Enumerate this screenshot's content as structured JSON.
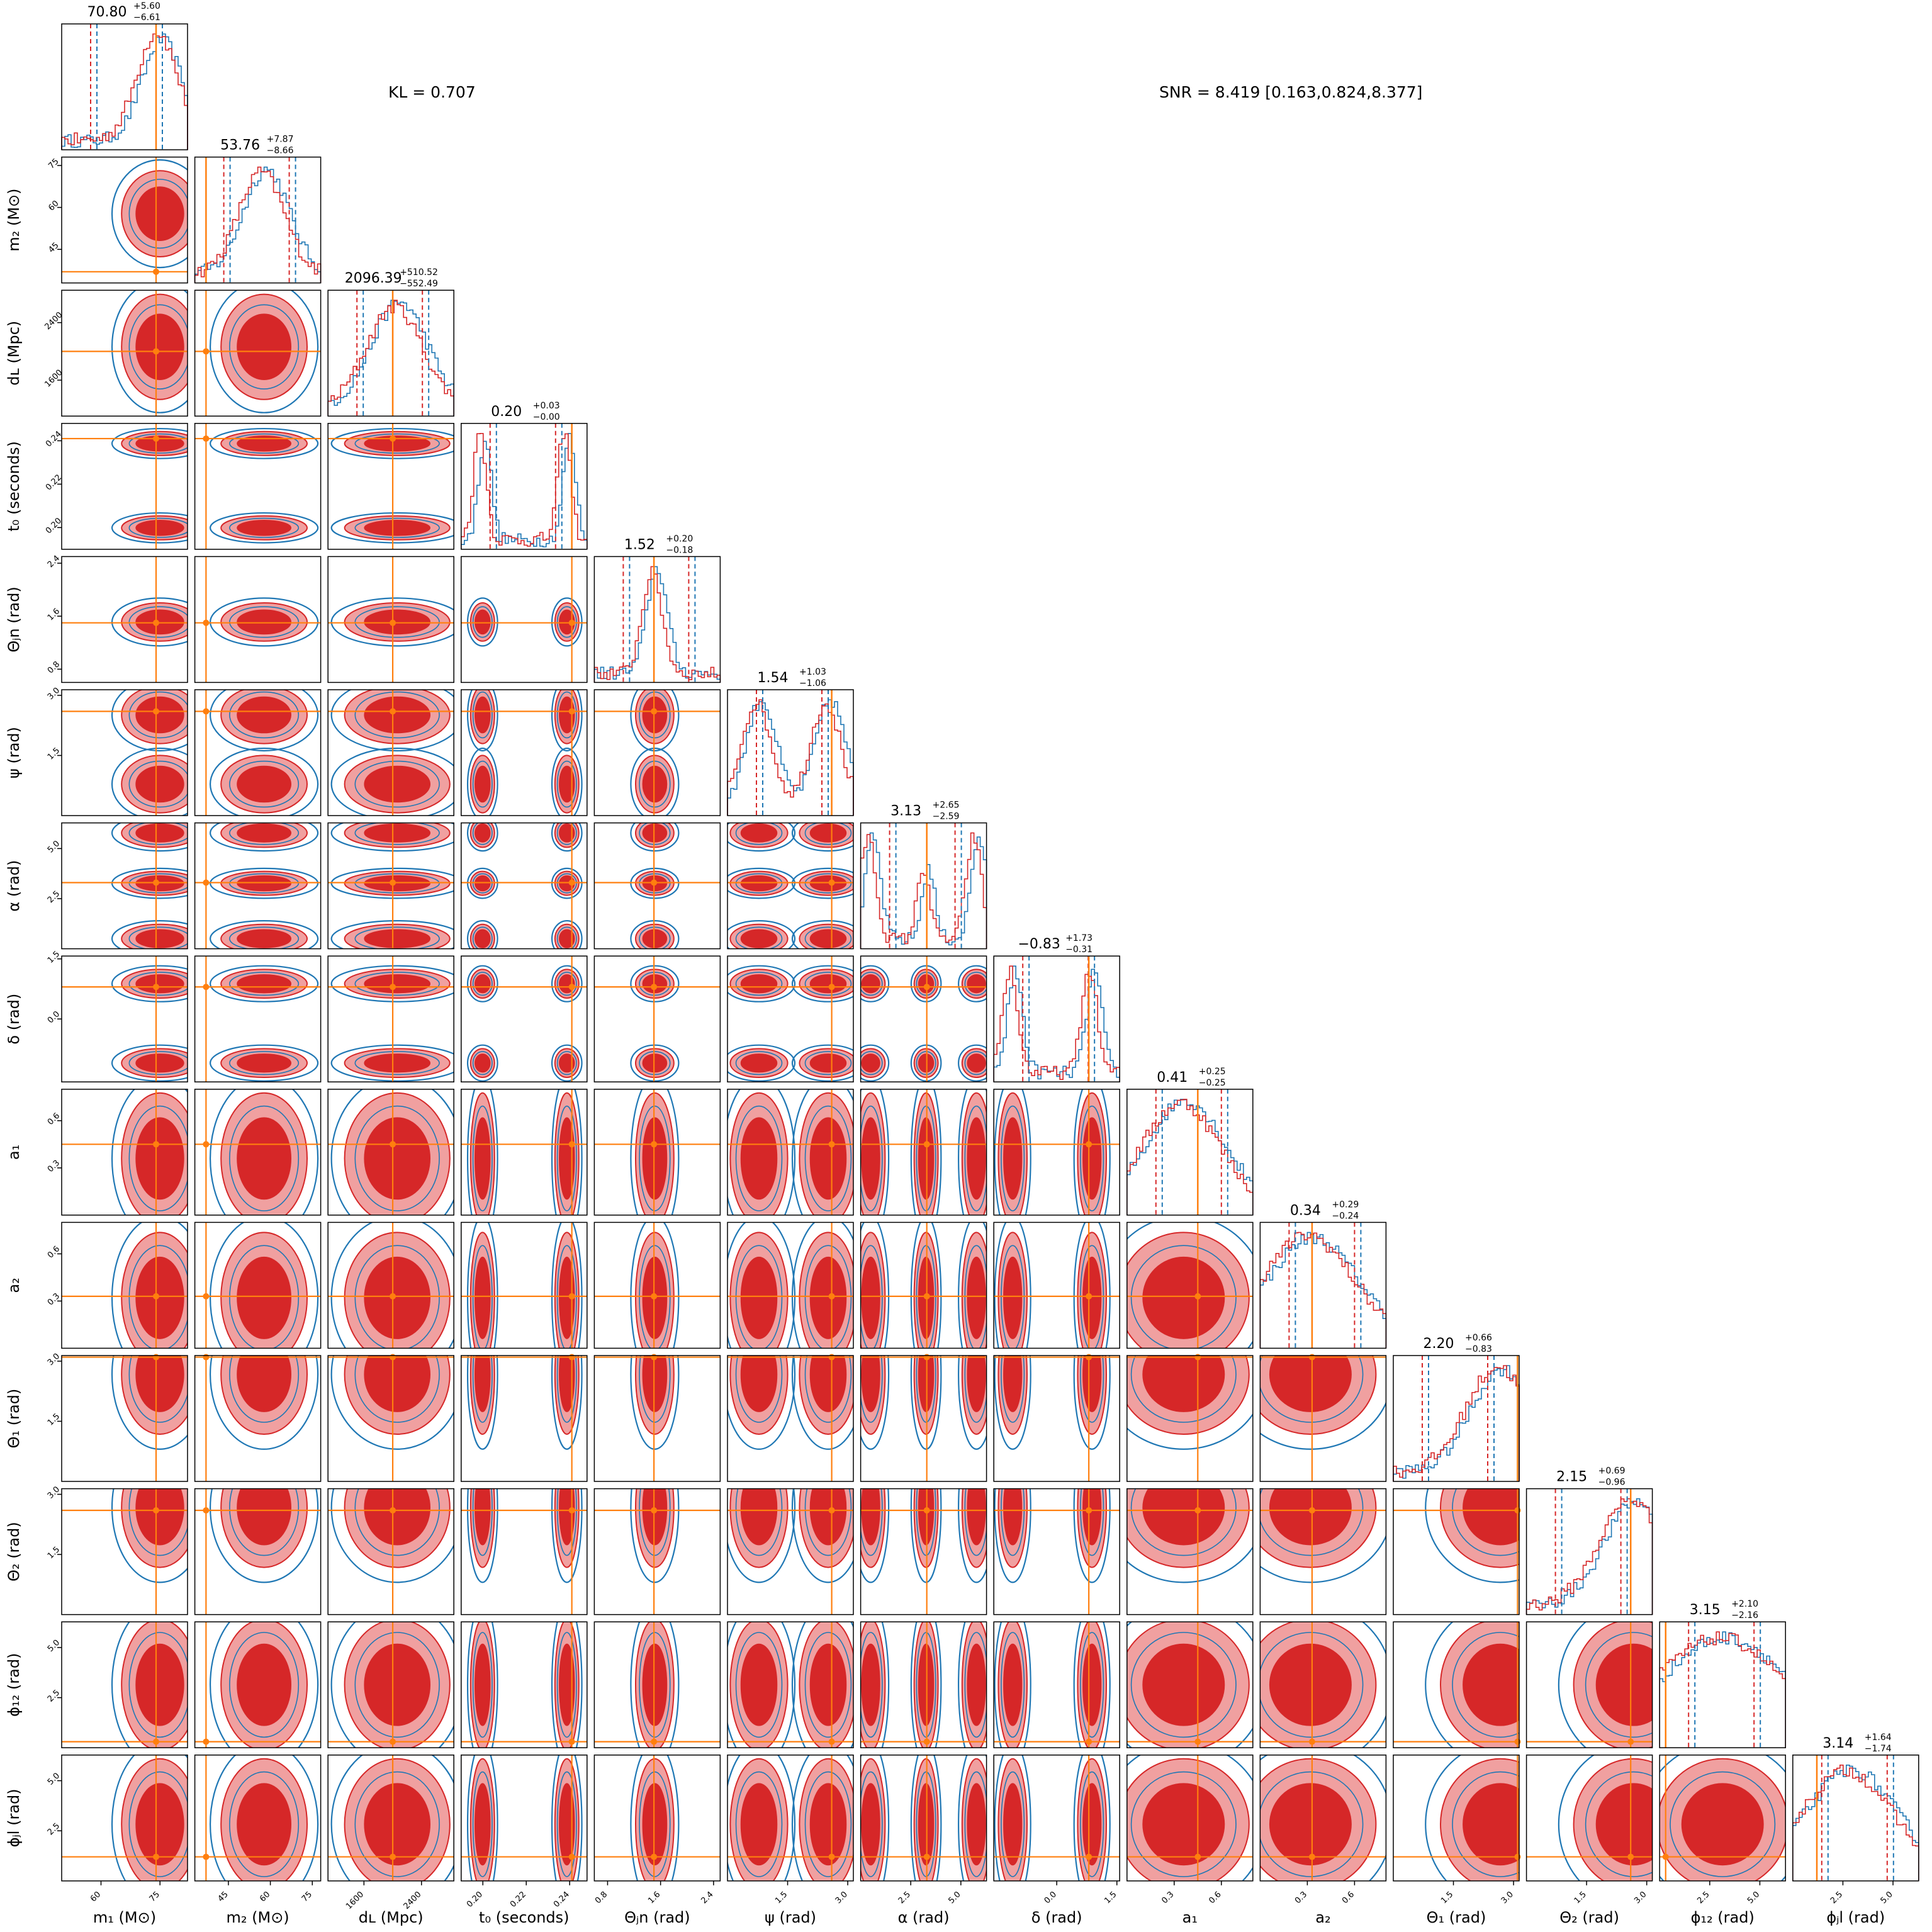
{
  "chart_data": {
    "type": "corner",
    "annotations": {
      "kl": "KL = 0.707",
      "snr": "SNR = 8.419 [0.163,0.824,8.377]"
    },
    "colors": {
      "series_a": "#d62728",
      "series_a_fill_light": "#f0a0a0",
      "series_b": "#1f77b4",
      "injection": "#ff7f0e"
    },
    "parameters": [
      {
        "key": "m1",
        "label": "m₁ (M⊙)",
        "range": [
          50,
          82
        ],
        "ticks": [
          "60",
          "75"
        ],
        "tick_values": [
          60,
          75
        ],
        "injection": 74,
        "title_value": "70.80",
        "title_plus": "+5.60",
        "title_minus": "−6.61"
      },
      {
        "key": "m2",
        "label": "m₂ (M⊙)",
        "range": [
          33,
          78
        ],
        "ticks": [
          "45",
          "60",
          "75"
        ],
        "tick_values": [
          45,
          60,
          75
        ],
        "injection": 37,
        "title_value": "53.76",
        "title_plus": "+7.87",
        "title_minus": "−8.66"
      },
      {
        "key": "dL",
        "label": "dʟ (Mpc)",
        "range": [
          1100,
          2850
        ],
        "ticks": [
          "1600",
          "2400"
        ],
        "tick_values": [
          1600,
          2400
        ],
        "injection": 2000,
        "title_value": "2096.39",
        "title_plus": "+510.52",
        "title_minus": "−552.49"
      },
      {
        "key": "t0",
        "label": "t₀ (seconds)",
        "range": [
          0.19,
          0.248
        ],
        "ticks": [
          "0.20",
          "0.22",
          "0.24"
        ],
        "tick_values": [
          0.2,
          0.22,
          0.24
        ],
        "injection": 0.241,
        "title_value": "0.20",
        "title_plus": "+0.03",
        "title_minus": "−0.00"
      },
      {
        "key": "thetajn",
        "label": "Θⱼn (rad)",
        "range": [
          0.6,
          2.5
        ],
        "ticks": [
          "0.8",
          "1.6",
          "2.4"
        ],
        "tick_values": [
          0.8,
          1.6,
          2.4
        ],
        "injection": 1.5,
        "title_value": "1.52",
        "title_plus": "+0.20",
        "title_minus": "−0.18"
      },
      {
        "key": "psi",
        "label": "ψ (rad)",
        "range": [
          0,
          3.14
        ],
        "ticks": [
          "1.5",
          "3.0"
        ],
        "tick_values": [
          1.5,
          3.0
        ],
        "injection": 2.6,
        "title_value": "1.54",
        "title_plus": "+1.03",
        "title_minus": "−1.06"
      },
      {
        "key": "alpha",
        "label": "α (rad)",
        "range": [
          0,
          6.28
        ],
        "ticks": [
          "2.5",
          "5.0"
        ],
        "tick_values": [
          2.5,
          5.0
        ],
        "injection": 3.3,
        "title_value": "3.13",
        "title_plus": "+2.65",
        "title_minus": "−2.59"
      },
      {
        "key": "delta",
        "label": "δ (rad)",
        "range": [
          -1.57,
          1.57
        ],
        "ticks": [
          "0.0",
          "1.5"
        ],
        "tick_values": [
          0.0,
          1.5
        ],
        "injection": 0.8,
        "title_value": "−0.83",
        "title_plus": "+1.73",
        "title_minus": "−0.31"
      },
      {
        "key": "a1",
        "label": "a₁",
        "range": [
          0,
          0.8
        ],
        "ticks": [
          "0.3",
          "0.6"
        ],
        "tick_values": [
          0.3,
          0.6
        ],
        "injection": 0.45,
        "title_value": "0.41",
        "title_plus": "+0.25",
        "title_minus": "−0.25"
      },
      {
        "key": "a2",
        "label": "a₂",
        "range": [
          0,
          0.8
        ],
        "ticks": [
          "0.3",
          "0.6"
        ],
        "tick_values": [
          0.3,
          0.6
        ],
        "injection": 0.33,
        "title_value": "0.34",
        "title_plus": "+0.29",
        "title_minus": "−0.24"
      },
      {
        "key": "theta1",
        "label": "Θ₁ (rad)",
        "range": [
          0,
          3.14
        ],
        "ticks": [
          "1.5",
          "3.0"
        ],
        "tick_values": [
          1.5,
          3.0
        ],
        "injection": 3.1,
        "title_value": "2.20",
        "title_plus": "+0.66",
        "title_minus": "−0.83"
      },
      {
        "key": "theta2",
        "label": "Θ₂ (rad)",
        "range": [
          0,
          3.14
        ],
        "ticks": [
          "1.5",
          "3.0"
        ],
        "tick_values": [
          1.5,
          3.0
        ],
        "injection": 2.6,
        "title_value": "2.15",
        "title_plus": "+0.69",
        "title_minus": "−0.96"
      },
      {
        "key": "phi12",
        "label": "ϕ₁₂ (rad)",
        "range": [
          0,
          6.28
        ],
        "ticks": [
          "2.5",
          "5.0"
        ],
        "tick_values": [
          2.5,
          5.0
        ],
        "injection": 0.3,
        "title_value": "3.15",
        "title_plus": "+2.10",
        "title_minus": "−2.16"
      },
      {
        "key": "phijl",
        "label": "ϕⱼl (rad)",
        "range": [
          0,
          6.28
        ],
        "ticks": [
          "2.5",
          "5.0"
        ],
        "tick_values": [
          2.5,
          5.0
        ],
        "injection": 1.2,
        "title_value": "3.14",
        "title_plus": "+1.64",
        "title_minus": "−1.74"
      }
    ]
  }
}
